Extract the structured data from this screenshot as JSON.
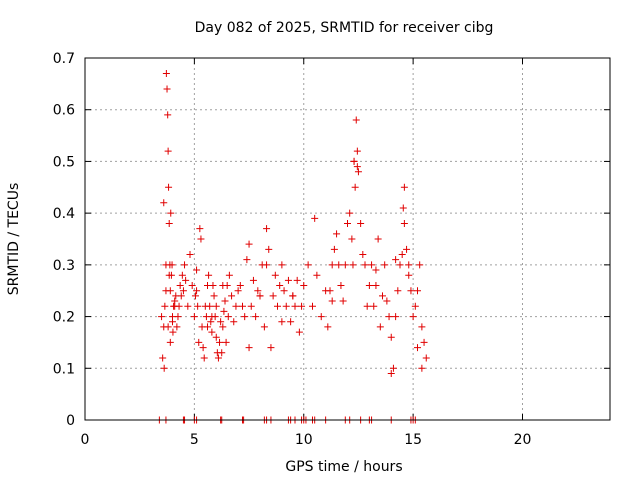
{
  "chart_data": {
    "type": "scatter",
    "title": "Day 082 of 2025, SRMTID for receiver cibg",
    "xlabel": "GPS time / hours",
    "ylabel": "SRMTID / TECUs",
    "xlim": [
      0,
      24
    ],
    "ylim": [
      0,
      0.7
    ],
    "xticks": [
      0,
      5,
      10,
      15,
      20
    ],
    "yticks": [
      0,
      0.1,
      0.2,
      0.3,
      0.4,
      0.5,
      0.6,
      0.7
    ],
    "xtick_labels": [
      "0",
      "5",
      "10",
      "15",
      "20"
    ],
    "ytick_labels": [
      "0",
      "0.1",
      "0.2",
      "0.3",
      "0.4",
      "0.5",
      "0.6",
      "0.7"
    ],
    "grid": true,
    "marker": "plus",
    "color": "#e00000",
    "series": [
      {
        "name": "SRMTID",
        "x": [
          3.5,
          3.55,
          3.6,
          3.62,
          3.65,
          3.7,
          3.72,
          3.75,
          3.78,
          3.8,
          3.82,
          3.85,
          3.88,
          3.9,
          3.92,
          3.95,
          3.98,
          4.0,
          4.02,
          4.05,
          4.1,
          4.15,
          4.2,
          4.25,
          4.3,
          4.35,
          4.4,
          4.45,
          4.5,
          4.55,
          4.6,
          4.7,
          4.8,
          4.9,
          5.0,
          5.05,
          5.1,
          5.15,
          5.2,
          5.25,
          5.3,
          5.35,
          5.4,
          5.45,
          5.5,
          5.55,
          5.6,
          5.65,
          5.7,
          5.75,
          5.8,
          5.85,
          5.9,
          5.95,
          6.0,
          6.05,
          6.1,
          6.15,
          6.2,
          6.25,
          6.3,
          6.35,
          6.4,
          6.45,
          6.5,
          6.55,
          6.6,
          6.7,
          6.8,
          6.9,
          7.0,
          7.1,
          7.2,
          7.3,
          7.4,
          7.5,
          7.6,
          7.7,
          7.8,
          7.9,
          8.0,
          8.1,
          8.2,
          8.3,
          8.4,
          8.5,
          8.6,
          8.7,
          8.8,
          8.9,
          9.0,
          9.1,
          9.2,
          9.3,
          9.4,
          9.5,
          9.6,
          9.7,
          9.8,
          9.9,
          10.0,
          10.2,
          10.4,
          10.6,
          10.8,
          11.0,
          11.1,
          11.2,
          11.3,
          11.4,
          11.5,
          11.6,
          11.7,
          11.8,
          11.9,
          12.0,
          12.1,
          12.2,
          12.25,
          12.3,
          12.35,
          12.4,
          12.45,
          12.5,
          12.6,
          12.7,
          12.8,
          12.9,
          13.0,
          13.1,
          13.2,
          13.3,
          13.4,
          13.5,
          13.6,
          13.7,
          13.8,
          13.9,
          14.0,
          14.1,
          14.2,
          14.3,
          14.4,
          14.5,
          14.55,
          14.6,
          14.7,
          14.8,
          14.9,
          15.0,
          15.1,
          15.2,
          15.3,
          15.4,
          15.5,
          15.6,
          3.6,
          3.7,
          3.8,
          3.85,
          3.9,
          4.0,
          4.1,
          5.1,
          5.6,
          5.8,
          6.0,
          6.3,
          7.5,
          8.0,
          8.3,
          9.0,
          9.5,
          10.5,
          11.3,
          12.3,
          12.45,
          13.3,
          14.0,
          14.2,
          14.6,
          14.8,
          15.2,
          15.4
        ],
        "y": [
          0.2,
          0.12,
          0.18,
          0.1,
          0.22,
          0.25,
          0.67,
          0.64,
          0.59,
          0.52,
          0.45,
          0.38,
          0.3,
          0.25,
          0.4,
          0.28,
          0.3,
          0.2,
          0.17,
          0.22,
          0.23,
          0.24,
          0.18,
          0.2,
          0.22,
          0.26,
          0.24,
          0.28,
          0.25,
          0.3,
          0.27,
          0.22,
          0.32,
          0.26,
          0.2,
          0.24,
          0.29,
          0.22,
          0.15,
          0.37,
          0.35,
          0.18,
          0.14,
          0.12,
          0.22,
          0.2,
          0.26,
          0.28,
          0.22,
          0.19,
          0.17,
          0.26,
          0.24,
          0.2,
          0.16,
          0.13,
          0.12,
          0.15,
          0.19,
          0.13,
          0.18,
          0.21,
          0.23,
          0.15,
          0.26,
          0.2,
          0.28,
          0.24,
          0.19,
          0.22,
          0.25,
          0.26,
          0.22,
          0.2,
          0.31,
          0.34,
          0.22,
          0.27,
          0.2,
          0.25,
          0.24,
          0.3,
          0.18,
          0.37,
          0.33,
          0.14,
          0.24,
          0.28,
          0.22,
          0.26,
          0.3,
          0.25,
          0.22,
          0.27,
          0.19,
          0.24,
          0.22,
          0.27,
          0.17,
          0.22,
          0.26,
          0.3,
          0.22,
          0.28,
          0.2,
          0.25,
          0.18,
          0.25,
          0.3,
          0.33,
          0.36,
          0.3,
          0.26,
          0.23,
          0.3,
          0.38,
          0.4,
          0.35,
          0.3,
          0.5,
          0.45,
          0.58,
          0.52,
          0.48,
          0.38,
          0.32,
          0.3,
          0.22,
          0.26,
          0.3,
          0.22,
          0.26,
          0.35,
          0.18,
          0.24,
          0.3,
          0.23,
          0.2,
          0.16,
          0.1,
          0.2,
          0.25,
          0.3,
          0.32,
          0.41,
          0.45,
          0.33,
          0.3,
          0.25,
          0.2,
          0.22,
          0.25,
          0.3,
          0.18,
          0.15,
          0.12,
          0.42,
          0.3,
          0.18,
          0.28,
          0.15,
          0.19,
          0.22,
          0.25,
          0.18,
          0.2,
          0.22,
          0.26,
          0.14,
          0.24,
          0.3,
          0.19,
          0.24,
          0.39,
          0.23,
          0.5,
          0.49,
          0.29,
          0.09,
          0.31,
          0.38,
          0.28,
          0.14,
          0.1
        ],
        "zeros_x": [
          3.4,
          3.7,
          4.5,
          4.55,
          5.0,
          5.1,
          6.2,
          6.25,
          7.2,
          7.25,
          8.2,
          8.3,
          8.5,
          9.3,
          9.4,
          9.6,
          9.9,
          10.0,
          10.1,
          10.4,
          10.5,
          11.0,
          11.9,
          12.1,
          12.6,
          13.0,
          13.1,
          14.0,
          14.9,
          15.0,
          15.1
        ]
      }
    ]
  }
}
